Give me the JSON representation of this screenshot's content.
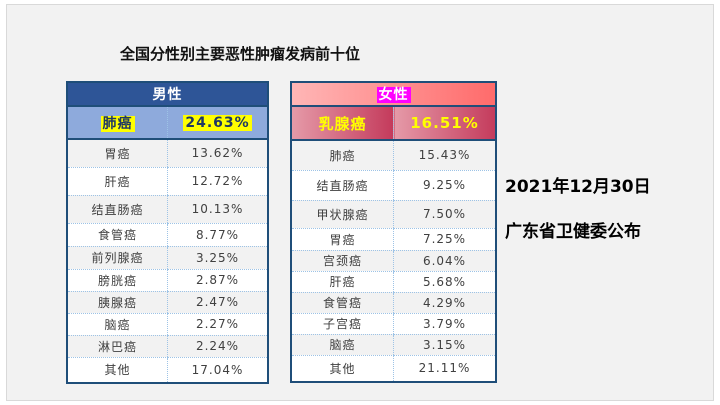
{
  "title": "全国分性别主要恶性肿瘤发病前十位",
  "male": {
    "header": "男性",
    "top": {
      "name": "肺癌",
      "value": "24.63%"
    },
    "rows": [
      [
        "胃癌",
        "13.62%"
      ],
      [
        "肝癌",
        "12.72%"
      ],
      [
        "结直肠癌",
        "10.13%"
      ],
      [
        "食管癌",
        "8.77%"
      ],
      [
        "前列腺癌",
        "3.25%"
      ],
      [
        "膀胱癌",
        "2.87%"
      ],
      [
        "胰腺癌",
        "2.47%"
      ],
      [
        "脑癌",
        "2.27%"
      ],
      [
        "淋巴癌",
        "2.24%"
      ],
      [
        "其他",
        "17.04%"
      ]
    ]
  },
  "female": {
    "header": "女性",
    "top": {
      "name": "乳腺癌",
      "value": "16.51%"
    },
    "rows": [
      [
        "肺癌",
        "15.43%"
      ],
      [
        "结直肠癌",
        "9.25%"
      ],
      [
        "甲状腺癌",
        "7.50%"
      ],
      [
        "胃癌",
        "7.25%"
      ],
      [
        "宫颈癌",
        "6.04%"
      ],
      [
        "肝癌",
        "5.68%"
      ],
      [
        "食管癌",
        "4.29%"
      ],
      [
        "子宫癌",
        "3.79%"
      ],
      [
        "脑癌",
        "3.15%"
      ],
      [
        "其他",
        "21.11%"
      ]
    ]
  },
  "date": "2021年12月30日",
  "source": "广东省卫健委公布"
}
